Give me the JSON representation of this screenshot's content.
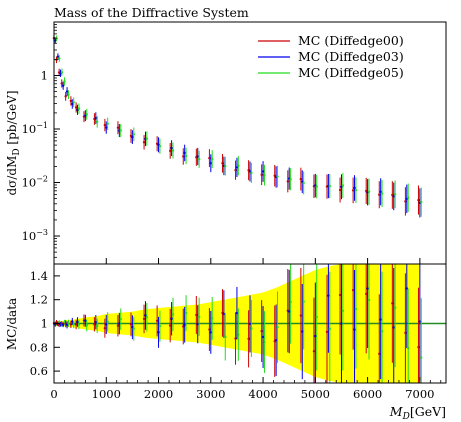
{
  "chart_data": {
    "type": "scatter",
    "title": "Mass of the Diffractive System",
    "xlabel": "M_D [GeV]",
    "xlabel_var": "M",
    "xlabel_sub": "D",
    "xlabel_unit": "[GeV]",
    "ylabel_main": "dσ/dM_D [pb/GeV]",
    "ylabel_main_parts": {
      "pre": "dσ/dM",
      "sub": "D",
      "post": " [pb/GeV]"
    },
    "ylabel_ratio": "MC/data",
    "xlim": [
      0,
      7500
    ],
    "ylim_main": [
      0.0003,
      10
    ],
    "ylog_main": true,
    "ylim_ratio": [
      0.5,
      1.5
    ],
    "legend_position": "top-right",
    "xticks": [
      {
        "value": 0,
        "label": "0"
      },
      {
        "value": 1000,
        "label": "1000"
      },
      {
        "value": 2000,
        "label": "2000"
      },
      {
        "value": 3000,
        "label": "3000"
      },
      {
        "value": 4000,
        "label": "4000"
      },
      {
        "value": 5000,
        "label": "5000"
      },
      {
        "value": 6000,
        "label": "6000"
      },
      {
        "value": 7000,
        "label": "7000"
      }
    ],
    "yticks_main": [
      {
        "value": 1,
        "label": "1"
      },
      {
        "value": 0.1,
        "label": "10",
        "exp": "−1"
      },
      {
        "value": 0.01,
        "label": "10",
        "exp": "−2"
      },
      {
        "value": 0.001,
        "label": "10",
        "exp": "−3"
      }
    ],
    "yticks_ratio": [
      {
        "value": 0.6,
        "label": "0.6"
      },
      {
        "value": 0.8,
        "label": "0.8"
      },
      {
        "value": 1.0,
        "label": "1"
      },
      {
        "value": 1.2,
        "label": "1.2"
      },
      {
        "value": 1.4,
        "label": "1.4"
      }
    ],
    "series": [
      {
        "name": "MC (Diffedge00)",
        "color": "#cc0000"
      },
      {
        "name": "MC (Diffedge03)",
        "color": "#0000ee"
      },
      {
        "name": "MC (Diffedge05)",
        "color": "#22dd22"
      }
    ],
    "band_color": "#ffff00",
    "reference_line_color": "#228b22",
    "x": [
      25,
      75,
      125,
      175,
      250,
      350,
      450,
      600,
      800,
      1000,
      1250,
      1500,
      1750,
      2000,
      2250,
      2500,
      2750,
      3000,
      3250,
      3500,
      3750,
      4000,
      4250,
      4500,
      4750,
      5000,
      5250,
      5500,
      5750,
      6000,
      6250,
      6500,
      6750,
      7000
    ],
    "values": [
      5.0,
      2.2,
      1.1,
      0.7,
      0.45,
      0.32,
      0.25,
      0.19,
      0.15,
      0.12,
      0.095,
      0.075,
      0.06,
      0.05,
      0.042,
      0.035,
      0.03,
      0.026,
      0.022,
      0.019,
      0.017,
      0.015,
      0.013,
      0.012,
      0.011,
      0.0095,
      0.0085,
      0.008,
      0.0072,
      0.0065,
      0.006,
      0.0055,
      0.005,
      0.0045
    ],
    "ratio_band_halfwidth": [
      0.02,
      0.02,
      0.02,
      0.02,
      0.03,
      0.03,
      0.04,
      0.05,
      0.06,
      0.08,
      0.09,
      0.1,
      0.12,
      0.13,
      0.14,
      0.15,
      0.16,
      0.18,
      0.2,
      0.22,
      0.24,
      0.26,
      0.3,
      0.35,
      0.4,
      0.45,
      0.48,
      0.5,
      0.5,
      0.5,
      0.5,
      0.5,
      0.5,
      0.5
    ]
  }
}
